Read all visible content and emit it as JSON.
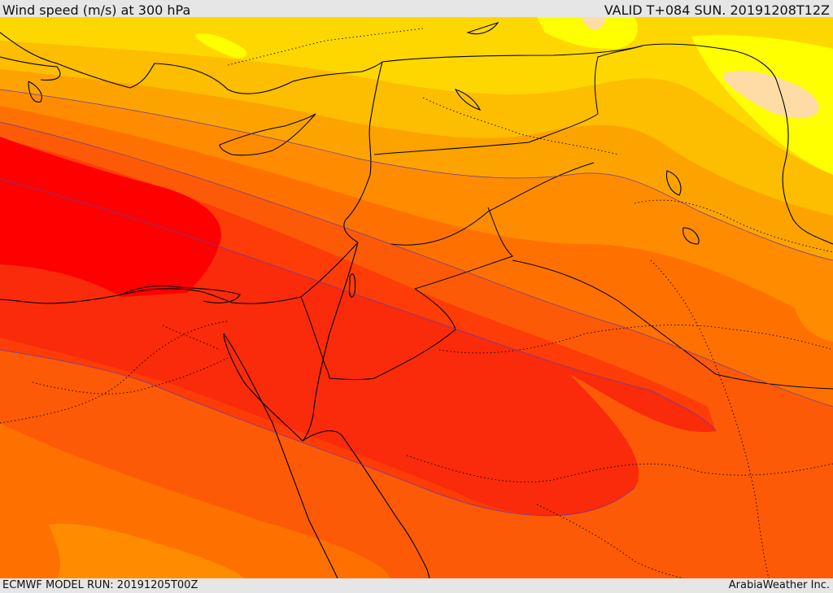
{
  "header": {
    "title": "Wind speed (m/s) at 300 hPa",
    "valid": "VALID T+084 SUN. 20191208T12Z"
  },
  "footer": {
    "model_run": "ECMWF MODEL RUN: 20191205T00Z",
    "brand": "ArabiaWeather Inc."
  },
  "map": {
    "field": "wind-speed-300hPa",
    "colors": {
      "core_red": "#ff0000",
      "red": "#f92b0a",
      "red_orange": "#fe3c08",
      "orange_red": "#fd5a07",
      "orange": "#fe7100",
      "light_orange": "#ff8c00",
      "amber": "#fca300",
      "gold": "#fdbd00",
      "yellow_gold": "#ffd700",
      "yellow": "#ffff00",
      "pale": "#ffdca6",
      "coast": "#000000",
      "isoline": "#6b3aa0"
    }
  }
}
